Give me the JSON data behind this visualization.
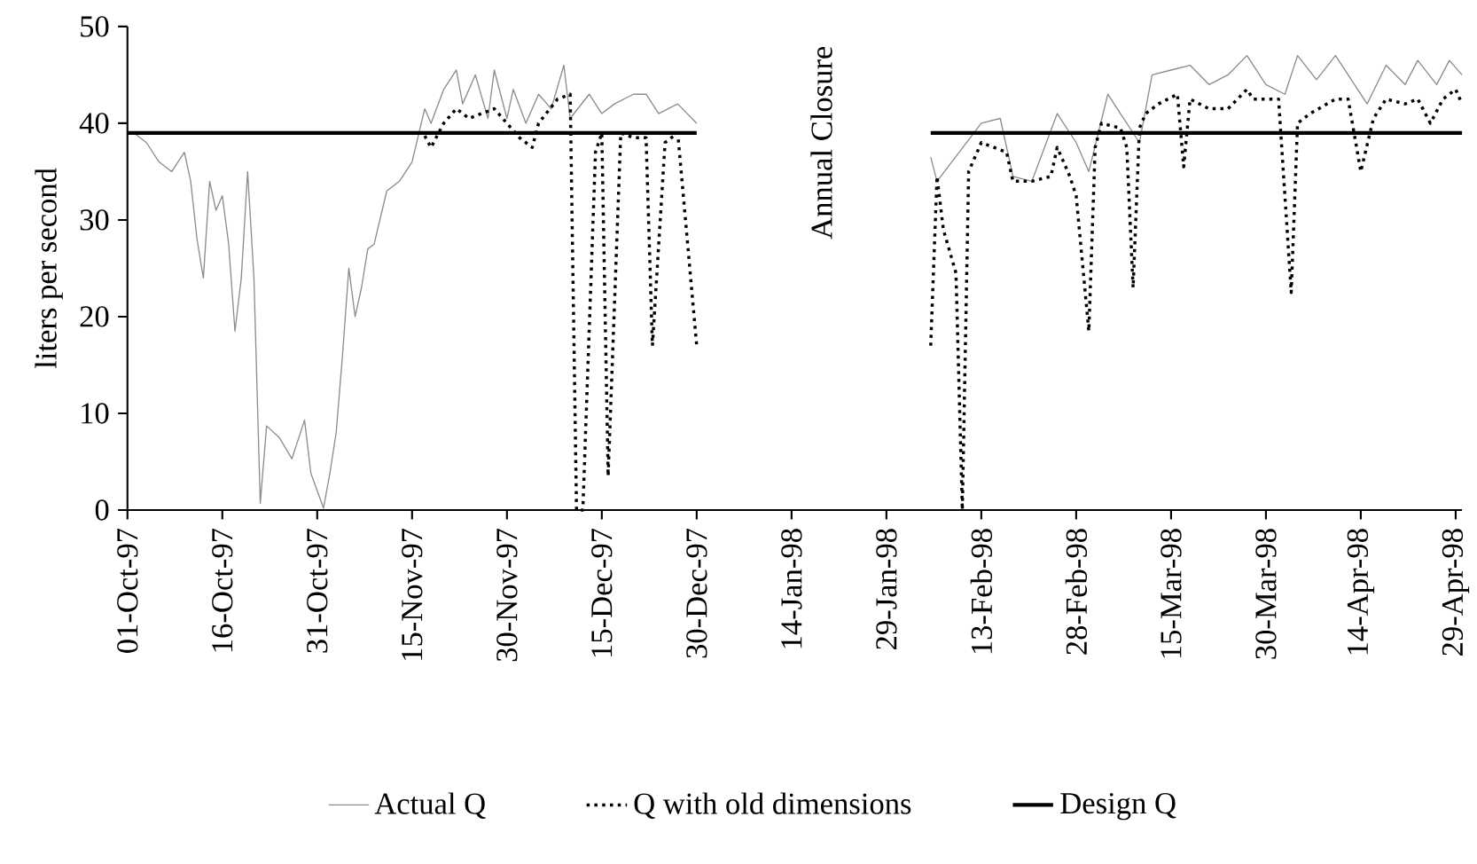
{
  "chart_data": {
    "type": "line",
    "ylabel": "liters per second",
    "xlim": [
      "1997-10-01",
      "1998-04-30"
    ],
    "xticks": [
      {
        "value": "1997-10-01",
        "label": "01-Oct-97"
      },
      {
        "value": "1997-10-16",
        "label": "16-Oct-97"
      },
      {
        "value": "1997-10-31",
        "label": "31-Oct-97"
      },
      {
        "value": "1997-11-15",
        "label": "15-Nov-97"
      },
      {
        "value": "1997-11-30",
        "label": "30-Nov-97"
      },
      {
        "value": "1997-12-15",
        "label": "15-Dec-97"
      },
      {
        "value": "1997-12-30",
        "label": "30-Dec-97"
      },
      {
        "value": "1998-01-14",
        "label": "14-Jan-98"
      },
      {
        "value": "1998-01-29",
        "label": "29-Jan-98"
      },
      {
        "value": "1998-02-13",
        "label": "13-Feb-98"
      },
      {
        "value": "1998-02-28",
        "label": "28-Feb-98"
      },
      {
        "value": "1998-03-15",
        "label": "15-Mar-98"
      },
      {
        "value": "1998-03-30",
        "label": "30-Mar-98"
      },
      {
        "value": "1998-04-14",
        "label": "14-Apr-98"
      },
      {
        "value": "1998-04-29",
        "label": "29-Apr-98"
      }
    ],
    "ylim": [
      0,
      50
    ],
    "yticks": [
      0,
      10,
      20,
      30,
      40,
      50
    ],
    "legend": "bottom",
    "marker": "none",
    "annotations": [
      "Annual Closure"
    ],
    "series": [
      {
        "name": "Actual Q",
        "color": "#8c8c8c",
        "line_style": "solid",
        "x": [
          "1997-10-01",
          "1997-10-02",
          "1997-10-04",
          "1997-10-06",
          "1997-10-08",
          "1997-10-10",
          "1997-10-11",
          "1997-10-12",
          "1997-10-13",
          "1997-10-14",
          "1997-10-15",
          "1997-10-16",
          "1997-10-17",
          "1997-10-18",
          "1997-10-19",
          "1997-10-20",
          "1997-10-21",
          "1997-10-22",
          "1997-10-23",
          "1997-10-25",
          "1997-10-27",
          "1997-10-29",
          "1997-10-30",
          "1997-11-01",
          "1997-11-02",
          "1997-11-03",
          "1997-11-04",
          "1997-11-05",
          "1997-11-06",
          "1997-11-07",
          "1997-11-08",
          "1997-11-09",
          "1997-11-11",
          "1997-11-13",
          "1997-11-15",
          "1997-11-17",
          "1997-11-18",
          "1997-11-20",
          "1997-11-22",
          "1997-11-23",
          "1997-11-25",
          "1997-11-27",
          "1997-11-28",
          "1997-11-30",
          "1997-12-01",
          "1997-12-03",
          "1997-12-05",
          "1997-12-07",
          "1997-12-09",
          "1997-12-10",
          "1997-12-13",
          "1997-12-15",
          "1997-12-17",
          "1997-12-20",
          "1997-12-22",
          "1997-12-24",
          "1997-12-27",
          "1997-12-30",
          "1998-01-17",
          "1998-02-05",
          "1998-02-06",
          "1998-02-13",
          "1998-02-16",
          "1998-02-18",
          "1998-02-21",
          "1998-02-25",
          "1998-02-28",
          "1998-03-02",
          "1998-03-05",
          "1998-03-07",
          "1998-03-10",
          "1998-03-12",
          "1998-03-15",
          "1998-03-18",
          "1998-03-21",
          "1998-03-24",
          "1998-03-27",
          "1998-03-30",
          "1998-04-02",
          "1998-04-04",
          "1998-04-07",
          "1998-04-10",
          "1998-04-13",
          "1998-04-15",
          "1998-04-18",
          "1998-04-21",
          "1998-04-23",
          "1998-04-26",
          "1998-04-28",
          "1998-04-30"
        ],
        "values": [
          39,
          39,
          38,
          36,
          35,
          37,
          34,
          28,
          24,
          34,
          31,
          32.5,
          27.5,
          18.5,
          24,
          35,
          24,
          0.7,
          8.7,
          7.5,
          5.3,
          9.3,
          3.8,
          0.2,
          3.8,
          8,
          16,
          25,
          20,
          23,
          27,
          27.5,
          33,
          34,
          36,
          41.5,
          40,
          43.5,
          45.5,
          42,
          45,
          40.5,
          45.5,
          40.5,
          43.5,
          40,
          43,
          41.5,
          46,
          40.5,
          43,
          41,
          42,
          43,
          43,
          41,
          42,
          40,
          null,
          36.5,
          34,
          40,
          40.5,
          34.5,
          34,
          41,
          38,
          35,
          43,
          41,
          38,
          45,
          45.5,
          46,
          44,
          45,
          47,
          44,
          43,
          47,
          44.5,
          47,
          44,
          42,
          46,
          44,
          46.5,
          44,
          46.5,
          45
        ]
      },
      {
        "name": "Q with old dimensions",
        "color": "#000000",
        "line_style": "dotted",
        "x": [
          "1997-11-17",
          "1997-11-18",
          "1997-11-20",
          "1997-11-22",
          "1997-11-24",
          "1997-11-26",
          "1997-11-28",
          "1997-11-30",
          "1997-12-02",
          "1997-12-04",
          "1997-12-05",
          "1997-12-08",
          "1997-12-10",
          "1997-12-11",
          "1997-12-12",
          "1997-12-14",
          "1997-12-15",
          "1997-12-16",
          "1997-12-18",
          "1997-12-20",
          "1997-12-22",
          "1997-12-23",
          "1997-12-25",
          "1997-12-27",
          "1997-12-30",
          "1998-01-17",
          "1998-02-05",
          "1998-02-06",
          "1998-02-07",
          "1998-02-09",
          "1998-02-10",
          "1998-02-11",
          "1998-02-13",
          "1998-02-15",
          "1998-02-17",
          "1998-02-18",
          "1998-02-21",
          "1998-02-24",
          "1998-02-25",
          "1998-02-27",
          "1998-02-28",
          "1998-03-02",
          "1998-03-03",
          "1998-03-04",
          "1998-03-07",
          "1998-03-08",
          "1998-03-09",
          "1998-03-10",
          "1998-03-11",
          "1998-03-13",
          "1998-03-16",
          "1998-03-17",
          "1998-03-18",
          "1998-03-21",
          "1998-03-24",
          "1998-03-27",
          "1998-03-28",
          "1998-03-31",
          "1998-04-01",
          "1998-04-03",
          "1998-04-04",
          "1998-04-06",
          "1998-04-10",
          "1998-04-12",
          "1998-04-14",
          "1998-04-16",
          "1998-04-18",
          "1998-04-21",
          "1998-04-23",
          "1998-04-25",
          "1998-04-27",
          "1998-04-29",
          "1998-04-30"
        ],
        "values": [
          38.7,
          37.5,
          40,
          41.5,
          40.5,
          41,
          41.5,
          40,
          38.5,
          37.5,
          40,
          42.5,
          43,
          0,
          0,
          37,
          39,
          3.5,
          39,
          38.5,
          38.5,
          17,
          38,
          39,
          17,
          null,
          17,
          34.5,
          29,
          24.5,
          0,
          35,
          38,
          37.5,
          37,
          34,
          34,
          34.5,
          37.5,
          34.5,
          32.5,
          18.5,
          37.5,
          40,
          39.5,
          37.5,
          23,
          39.5,
          41,
          42,
          43,
          35.5,
          42.5,
          41.5,
          41.5,
          43.5,
          42.5,
          42.5,
          42.5,
          22.5,
          40,
          41,
          42.5,
          42.5,
          35,
          40.5,
          42.5,
          42,
          42.5,
          40,
          42.5,
          43.5,
          42
        ]
      },
      {
        "name": "Design Q",
        "color": "#000000",
        "line_style": "solid",
        "x": [
          "1997-10-01",
          "1997-12-30",
          "1998-01-17",
          "1998-02-05",
          "1998-04-30"
        ],
        "values": [
          39,
          39,
          null,
          39,
          39
        ]
      }
    ]
  }
}
